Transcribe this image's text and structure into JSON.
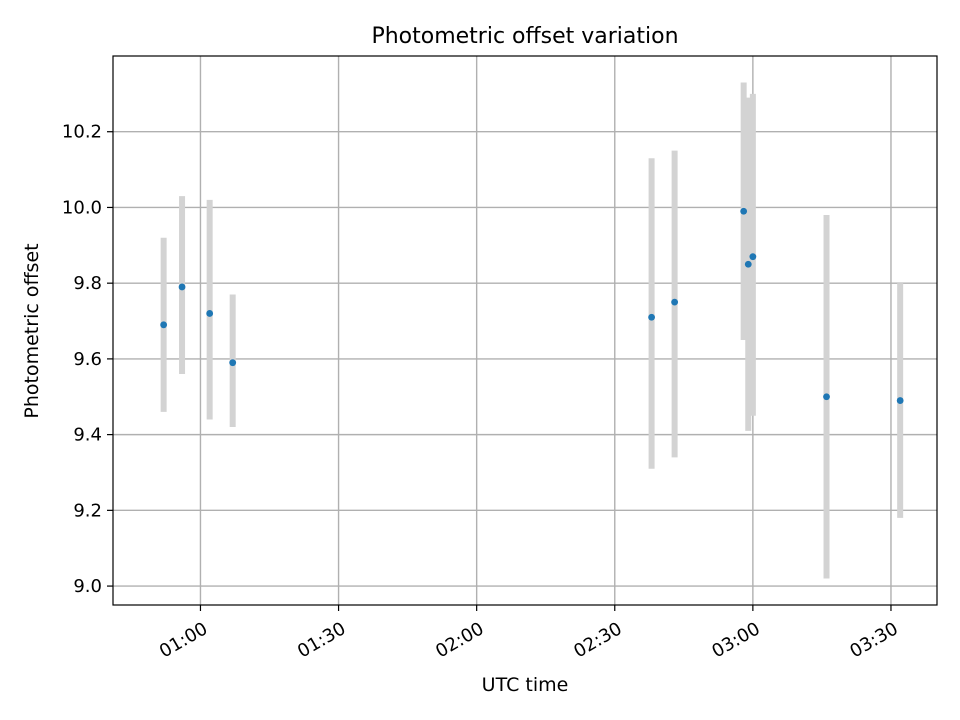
{
  "chart_data": {
    "type": "scatter",
    "title": "Photometric offset variation",
    "xlabel": "UTC time",
    "ylabel": "Photometric offset",
    "x_axis_type": "time",
    "xlim": [
      "00:41",
      "03:40"
    ],
    "ylim": [
      8.95,
      10.4
    ],
    "x_ticks": [
      "01:00",
      "01:30",
      "02:00",
      "02:30",
      "03:00",
      "03:30"
    ],
    "y_ticks": [
      9.0,
      9.2,
      9.4,
      9.6,
      9.8,
      10.0,
      10.2
    ],
    "y_tick_labels": [
      "9.0",
      "9.2",
      "9.4",
      "9.6",
      "9.8",
      "10.0",
      "10.2"
    ],
    "grid": true,
    "colors": {
      "marker": "#1f77b4",
      "errorbar": "#d3d3d3",
      "grid": "#b0b0b0",
      "axes": "#000000"
    },
    "series": [
      {
        "points": [
          {
            "x": "00:52",
            "y": 9.69,
            "yerr_low": 9.46,
            "yerr_high": 9.92
          },
          {
            "x": "00:56",
            "y": 9.79,
            "yerr_low": 9.56,
            "yerr_high": 10.03
          },
          {
            "x": "01:02",
            "y": 9.72,
            "yerr_low": 9.44,
            "yerr_high": 10.02
          },
          {
            "x": "01:07",
            "y": 9.59,
            "yerr_low": 9.42,
            "yerr_high": 9.77
          },
          {
            "x": "02:38",
            "y": 9.71,
            "yerr_low": 9.31,
            "yerr_high": 10.13
          },
          {
            "x": "02:43",
            "y": 9.75,
            "yerr_low": 9.34,
            "yerr_high": 10.15
          },
          {
            "x": "02:58",
            "y": 9.99,
            "yerr_low": 9.65,
            "yerr_high": 10.33
          },
          {
            "x": "02:59",
            "y": 9.85,
            "yerr_low": 9.41,
            "yerr_high": 10.29
          },
          {
            "x": "03:00",
            "y": 9.87,
            "yerr_low": 9.45,
            "yerr_high": 10.3
          },
          {
            "x": "03:16",
            "y": 9.5,
            "yerr_low": 9.02,
            "yerr_high": 9.98
          },
          {
            "x": "03:32",
            "y": 9.49,
            "yerr_low": 9.18,
            "yerr_high": 9.8
          }
        ]
      }
    ]
  }
}
